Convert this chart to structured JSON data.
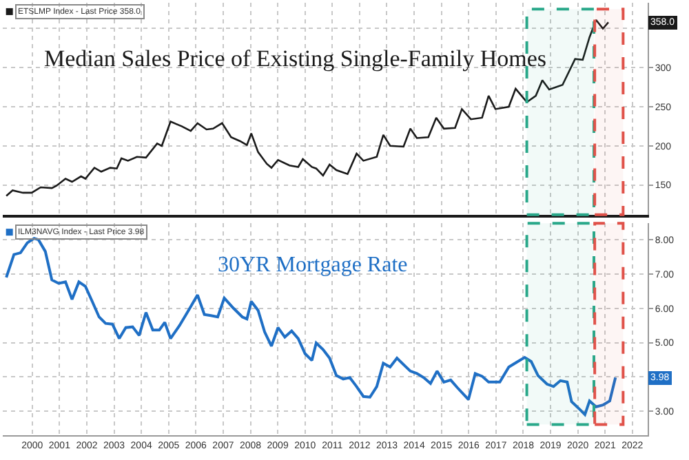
{
  "chart_data": [
    {
      "type": "line",
      "title": "Median Sales Price of Existing Single-Family Homes",
      "series": [
        {
          "name": "ETSLMP Index - Last Price 358.0",
          "color": "#1a1a1a",
          "x": [
            1999.55,
            1999.78,
            2000.16,
            2000.48,
            2000.81,
            2001.22,
            2001.39,
            2001.72,
            2001.96,
            2002.29,
            2002.45,
            2002.78,
            2003.03,
            2003.36,
            2003.6,
            2003.77,
            2004.01,
            2004.34,
            2004.67,
            2005.08,
            2005.25,
            2005.57,
            2005.98,
            2006.31,
            2006.56,
            2006.89,
            2007.13,
            2007.46,
            2007.79,
            2008.12,
            2008.37,
            2008.53,
            2008.78,
            2009.1,
            2009.27,
            2009.51,
            2009.93,
            2010.25,
            2010.42,
            2010.75,
            2010.91,
            2011.16,
            2011.4,
            2011.65,
            2011.9,
            2012.06,
            2012.39,
            2012.64,
            2013.13,
            2013.37,
            2013.62,
            2014.11,
            2014.36,
            2014.6,
            2015.02,
            2015.31,
            2015.59,
            2016.0,
            2016.25,
            2016.58,
            2016.99,
            2017.23,
            2017.48,
            2017.97,
            2018.22,
            2018.63,
            2018.96,
            2019.2,
            2019.45,
            2019.94,
            2020.4,
            2020.68,
            2020.93,
            2021.17,
            2021.42,
            2021.62
          ],
          "values": [
            136,
            143,
            140,
            140,
            147,
            146,
            149,
            158,
            154,
            161,
            158,
            172,
            167,
            172,
            171,
            184,
            181,
            186,
            185,
            203,
            200,
            231,
            225,
            219,
            229,
            221,
            222,
            229,
            211,
            206,
            201,
            216,
            192,
            177,
            172,
            182,
            175,
            173,
            183,
            173,
            171,
            162,
            176,
            169,
            166,
            164,
            190,
            181,
            186,
            214,
            200,
            199,
            222,
            210,
            211,
            236,
            222,
            223,
            247,
            234,
            236,
            264,
            247,
            250,
            273,
            256,
            264,
            284,
            272,
            278,
            311,
            310,
            339,
            361,
            350,
            358
          ]
        }
      ],
      "xlim": [
        1999.42,
        2023.06
      ],
      "xticks": [
        {
          "value": 2000.5,
          "label": null
        },
        {
          "value": 2001.5,
          "label": null
        },
        {
          "value": 2002.5,
          "label": null
        },
        {
          "value": 2003.5,
          "label": null
        },
        {
          "value": 2004.5,
          "label": null
        },
        {
          "value": 2005.5,
          "label": null
        },
        {
          "value": 2006.5,
          "label": null
        },
        {
          "value": 2007.5,
          "label": null
        },
        {
          "value": 2008.5,
          "label": null
        },
        {
          "value": 2009.5,
          "label": null
        },
        {
          "value": 2010.5,
          "label": null
        },
        {
          "value": 2011.5,
          "label": null
        },
        {
          "value": 2012.5,
          "label": null
        },
        {
          "value": 2013.5,
          "label": null
        },
        {
          "value": 2014.5,
          "label": null
        },
        {
          "value": 2015.5,
          "label": null
        },
        {
          "value": 2016.5,
          "label": null
        },
        {
          "value": 2017.5,
          "label": null
        },
        {
          "value": 2018.5,
          "label": null
        },
        {
          "value": 2019.5,
          "label": null
        },
        {
          "value": 2020.5,
          "label": null
        },
        {
          "value": 2021.5,
          "label": null
        },
        {
          "value": 2022.5,
          "label": null
        }
      ],
      "ylim": [
        112,
        383
      ],
      "yticks": [
        150,
        200,
        250,
        300,
        {
          "value": 350,
          "label": null
        }
      ],
      "tick_labels": "y",
      "grid": true,
      "legend": "top left",
      "marker": "none",
      "line_style": "solid",
      "annotations": [
        "358.0"
      ],
      "bands": [
        {
          "axis": "x",
          "from": 2018.63,
          "to": 2021.09,
          "color": "#2aa88a"
        },
        {
          "axis": "x",
          "from": 2021.12,
          "to": 2022.16,
          "color": "#e0524a"
        }
      ]
    },
    {
      "type": "line",
      "title": "30YR Mortgage Rate",
      "series": [
        {
          "name": "ILM3NAVG Index - Last Price 3.98",
          "color": "#1f6fc5",
          "x": [
            1999.55,
            1999.83,
            2000.07,
            2000.32,
            2000.57,
            2000.73,
            2000.98,
            2001.22,
            2001.47,
            2001.72,
            2001.96,
            2002.21,
            2002.45,
            2002.7,
            2002.95,
            2003.19,
            2003.44,
            2003.69,
            2003.93,
            2004.18,
            2004.42,
            2004.67,
            2004.92,
            2005.16,
            2005.36,
            2005.57,
            2005.9,
            2006.23,
            2006.56,
            2006.81,
            2007.05,
            2007.3,
            2007.54,
            2007.87,
            2008.2,
            2008.37,
            2008.53,
            2008.78,
            2009.02,
            2009.27,
            2009.51,
            2009.76,
            2010.01,
            2010.25,
            2010.5,
            2010.75,
            2010.91,
            2011.16,
            2011.4,
            2011.65,
            2011.9,
            2012.14,
            2012.39,
            2012.64,
            2012.88,
            2013.13,
            2013.37,
            2013.62,
            2013.87,
            2014.11,
            2014.36,
            2014.6,
            2014.85,
            2015.1,
            2015.34,
            2015.59,
            2015.84,
            2016.08,
            2016.49,
            2016.74,
            2016.99,
            2017.23,
            2017.64,
            2017.97,
            2018.3,
            2018.55,
            2018.79,
            2019.04,
            2019.37,
            2019.61,
            2019.86,
            2020.11,
            2020.27,
            2020.6,
            2020.76,
            2020.93,
            2021.17,
            2021.42,
            2021.67,
            2021.88
          ],
          "values": [
            6.9,
            7.57,
            7.62,
            7.91,
            8.04,
            8.0,
            7.66,
            6.83,
            6.73,
            6.77,
            6.26,
            6.77,
            6.64,
            6.2,
            5.75,
            5.56,
            5.54,
            5.12,
            5.44,
            5.46,
            5.21,
            5.88,
            5.37,
            5.37,
            5.59,
            5.12,
            5.5,
            5.94,
            6.39,
            5.82,
            5.79,
            5.75,
            6.3,
            6.01,
            5.75,
            5.69,
            6.2,
            5.94,
            5.31,
            4.9,
            5.44,
            5.16,
            5.34,
            5.12,
            4.68,
            4.48,
            4.99,
            4.8,
            4.55,
            4.04,
            3.94,
            3.98,
            3.72,
            3.43,
            3.41,
            3.72,
            4.4,
            4.29,
            4.55,
            4.36,
            4.17,
            4.1,
            3.98,
            3.81,
            4.17,
            3.85,
            3.91,
            3.69,
            3.34,
            4.1,
            4.02,
            3.85,
            3.85,
            4.29,
            4.45,
            4.57,
            4.45,
            4.04,
            3.79,
            3.72,
            3.89,
            3.85,
            3.28,
            3.03,
            2.9,
            3.3,
            3.13,
            3.18,
            3.3,
            3.98
          ]
        }
      ],
      "xlim": [
        1999.42,
        2023.06
      ],
      "xticks": [
        {
          "value": 2000.5,
          "label": "2000"
        },
        {
          "value": 2001.5,
          "label": "2001"
        },
        {
          "value": 2002.5,
          "label": "2002"
        },
        {
          "value": 2003.5,
          "label": "2003"
        },
        {
          "value": 2004.5,
          "label": "2004"
        },
        {
          "value": 2005.5,
          "label": "2005"
        },
        {
          "value": 2006.5,
          "label": "2006"
        },
        {
          "value": 2007.5,
          "label": "2007"
        },
        {
          "value": 2008.5,
          "label": "2008"
        },
        {
          "value": 2009.5,
          "label": "2009"
        },
        {
          "value": 2010.5,
          "label": "2010"
        },
        {
          "value": 2011.5,
          "label": "2011"
        },
        {
          "value": 2012.5,
          "label": "2012"
        },
        {
          "value": 2013.5,
          "label": "2013"
        },
        {
          "value": 2014.5,
          "label": "2014"
        },
        {
          "value": 2015.5,
          "label": "2015"
        },
        {
          "value": 2016.5,
          "label": "2016"
        },
        {
          "value": 2017.5,
          "label": "2017"
        },
        {
          "value": 2018.5,
          "label": "2018"
        },
        {
          "value": 2019.5,
          "label": "2019"
        },
        {
          "value": 2020.5,
          "label": "2020"
        },
        {
          "value": 2021.5,
          "label": "2021"
        },
        {
          "value": 2022.5,
          "label": "2022"
        }
      ],
      "ylim": [
        2.3,
        8.48
      ],
      "yticks": [
        {
          "value": 3,
          "label": "3.00"
        },
        {
          "value": 4,
          "label": null
        },
        {
          "value": 5,
          "label": "5.00"
        },
        {
          "value": 6,
          "label": "6.00"
        },
        {
          "value": 7,
          "label": "7.00"
        },
        {
          "value": 8,
          "label": "8.00"
        }
      ],
      "grid": true,
      "legend": "top left",
      "marker": "none",
      "line_style": "solid",
      "annotations": [
        "3.98"
      ],
      "bands": [
        {
          "axis": "x",
          "from": 2018.63,
          "to": 2021.09,
          "color": "#2aa88a"
        },
        {
          "axis": "x",
          "from": 2021.12,
          "to": 2022.16,
          "color": "#e0524a"
        }
      ]
    }
  ]
}
